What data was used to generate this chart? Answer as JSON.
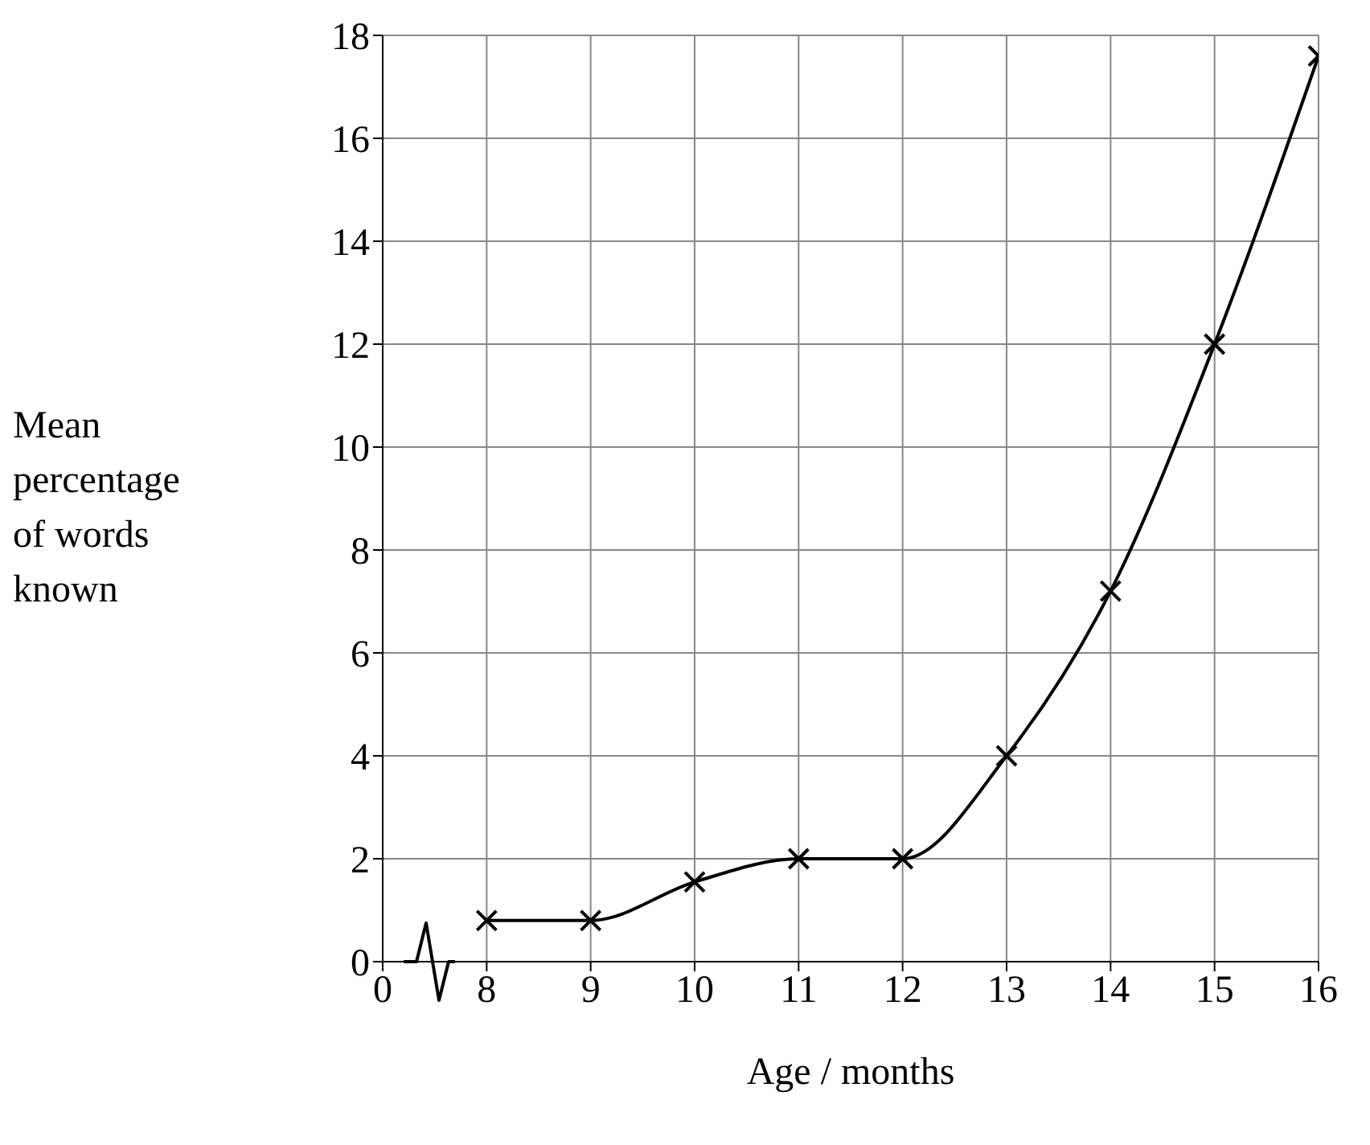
{
  "chart_data": {
    "type": "line",
    "xlabel": "Age / months",
    "ylabel": "Mean percentage of words known",
    "categories": [
      "0",
      "8",
      "9",
      "10",
      "11",
      "12",
      "13",
      "14",
      "15",
      "16"
    ],
    "series": [
      {
        "color": "#000000",
        "values": [
          null,
          0.8,
          0.8,
          1.55,
          2.0,
          2.0,
          4.0,
          7.2,
          12.0,
          17.6
        ]
      }
    ],
    "ylim": [
      0,
      18
    ],
    "yticks": [
      0,
      2,
      4,
      6,
      8,
      10,
      12,
      14,
      16,
      18
    ],
    "grid": true,
    "marker": "cross",
    "line_style": "solid"
  }
}
